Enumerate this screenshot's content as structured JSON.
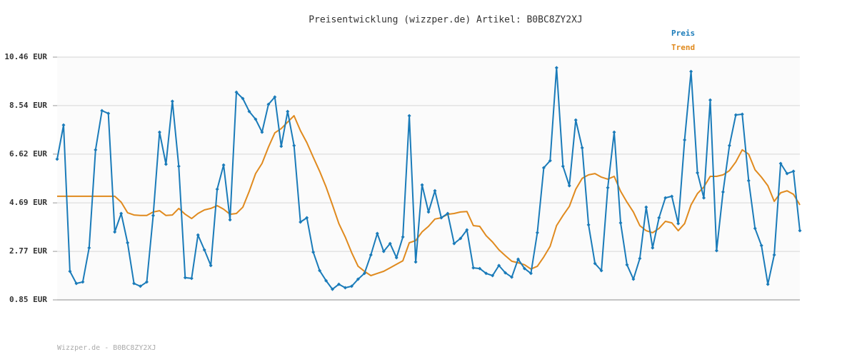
{
  "chart_data": {
    "type": "line",
    "title": "Preisentwicklung (wizzper.de) Artikel: B0BC8ZY2XJ",
    "footer": "Wizzper.de - B0BC8ZY2XJ",
    "ylim": [
      0.85,
      10.46
    ],
    "yticks": [
      {
        "value": 0.85,
        "label": "0.85 EUR"
      },
      {
        "value": 2.77,
        "label": "2.77 EUR"
      },
      {
        "value": 4.69,
        "label": "4.69 EUR"
      },
      {
        "value": 6.62,
        "label": "6.62 EUR"
      },
      {
        "value": 8.54,
        "label": "8.54 EUR"
      },
      {
        "value": 10.46,
        "label": "10.46 EUR"
      }
    ],
    "grid": true,
    "legend": "top-right",
    "series": [
      {
        "name": "Preis",
        "color": "#1a7bb9",
        "markers": true,
        "values": [
          6.42,
          7.77,
          1.98,
          1.5,
          1.56,
          2.91,
          6.79,
          8.34,
          8.23,
          3.54,
          4.27,
          3.11,
          1.5,
          1.39,
          1.56,
          4.19,
          7.49,
          6.22,
          8.71,
          6.14,
          1.73,
          1.7,
          3.42,
          2.83,
          2.21,
          5.23,
          6.19,
          4.02,
          9.07,
          8.82,
          8.31,
          8.0,
          7.49,
          8.59,
          8.88,
          6.93,
          8.31,
          6.96,
          3.93,
          4.1,
          2.74,
          2.01,
          1.61,
          1.27,
          1.47,
          1.33,
          1.39,
          1.67,
          1.9,
          2.63,
          3.48,
          2.77,
          3.08,
          2.52,
          3.34,
          8.14,
          2.35,
          5.4,
          4.33,
          5.17,
          4.1,
          4.27,
          3.08,
          3.28,
          3.62,
          2.12,
          2.09,
          1.9,
          1.81,
          2.21,
          1.92,
          1.75,
          2.46,
          2.09,
          1.9,
          3.51,
          6.08,
          6.36,
          10.04,
          6.14,
          5.37,
          7.97,
          6.87,
          3.82,
          2.29,
          2.01,
          5.29,
          7.49,
          3.9,
          2.24,
          1.67,
          2.49,
          4.52,
          2.91,
          4.1,
          4.89,
          4.95,
          3.87,
          7.18,
          9.89,
          5.88,
          4.89,
          8.76,
          2.8,
          5.12,
          6.96,
          8.17,
          8.2,
          5.57,
          3.68,
          3.0,
          1.47,
          2.63,
          6.25,
          5.85,
          5.94,
          3.59
        ]
      },
      {
        "name": "Trend",
        "color": "#e08a1e",
        "markers": false,
        "values": [
          4.95,
          4.95,
          4.95,
          4.95,
          4.95,
          4.95,
          4.95,
          4.95,
          4.95,
          4.95,
          4.72,
          4.3,
          4.21,
          4.19,
          4.19,
          4.33,
          4.38,
          4.19,
          4.21,
          4.47,
          4.24,
          4.07,
          4.27,
          4.41,
          4.47,
          4.58,
          4.44,
          4.24,
          4.27,
          4.52,
          5.15,
          5.85,
          6.25,
          6.9,
          7.46,
          7.63,
          7.89,
          8.14,
          7.55,
          7.07,
          6.5,
          5.94,
          5.32,
          4.61,
          3.87,
          3.34,
          2.72,
          2.18,
          1.98,
          1.81,
          1.9,
          1.98,
          2.12,
          2.26,
          2.4,
          3.11,
          3.2,
          3.54,
          3.76,
          4.05,
          4.1,
          4.24,
          4.27,
          4.33,
          4.35,
          3.79,
          3.76,
          3.39,
          3.14,
          2.83,
          2.6,
          2.38,
          2.32,
          2.24,
          2.07,
          2.18,
          2.55,
          2.97,
          3.79,
          4.19,
          4.55,
          5.23,
          5.66,
          5.8,
          5.85,
          5.71,
          5.63,
          5.74,
          5.15,
          4.72,
          4.33,
          3.79,
          3.59,
          3.51,
          3.68,
          3.96,
          3.9,
          3.59,
          3.87,
          4.61,
          5.06,
          5.32,
          5.74,
          5.74,
          5.8,
          5.97,
          6.31,
          6.79,
          6.62,
          6.0,
          5.71,
          5.37,
          4.75,
          5.09,
          5.17,
          5.03,
          4.61
        ]
      }
    ]
  }
}
